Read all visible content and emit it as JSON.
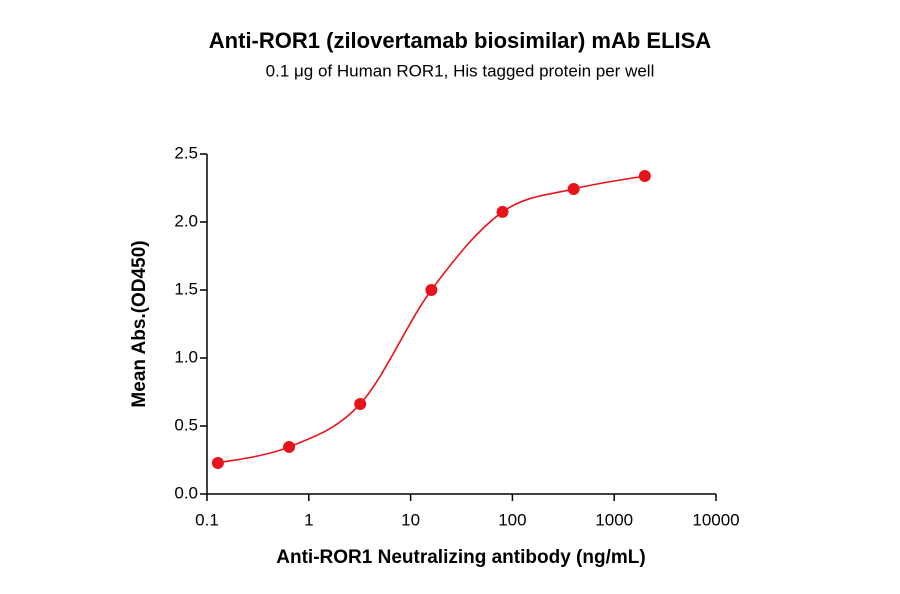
{
  "chart_data": {
    "type": "scatter",
    "title": "Anti-ROR1 (zilovertamab biosimilar) mAb ELISA",
    "subtitle": "0.1 μg of Human ROR1, His tagged protein per well",
    "x_label": "Anti-ROR1 Neutralizing antibody (ng/mL)",
    "y_label": "Mean Abs.(OD450)",
    "x": [
      0.128,
      0.64,
      3.2,
      16,
      80,
      400,
      2000
    ],
    "values": [
      0.228,
      0.346,
      0.662,
      1.5,
      2.074,
      2.243,
      2.338
    ],
    "color": "#e8141b",
    "xscale": "log",
    "xlim": [
      0.1,
      10000
    ],
    "xticks": [
      0.1,
      1,
      10,
      100,
      1000,
      10000
    ],
    "ylim": [
      0,
      2.5
    ],
    "yticks": [
      {
        "value": 0,
        "label": "0.0"
      },
      0.5,
      {
        "value": 1,
        "label": "1.0"
      },
      1.5,
      {
        "value": 2,
        "label": "2.0"
      },
      2.5
    ]
  }
}
